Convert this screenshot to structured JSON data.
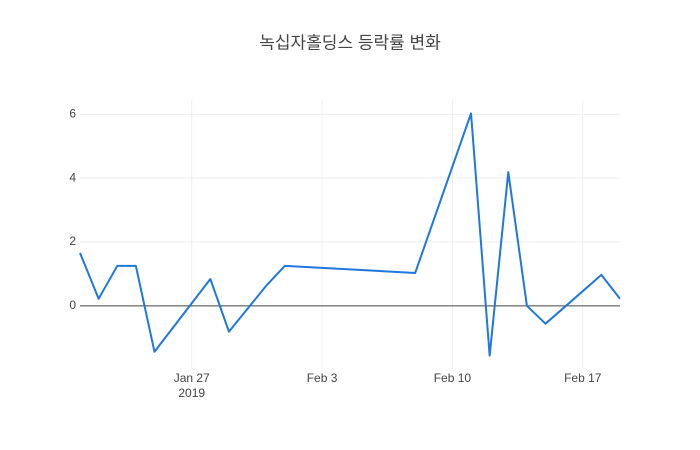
{
  "chart_data": {
    "type": "line",
    "title": "녹십자홀딩스 등락률 변화",
    "x": [
      "2019-01-21",
      "2019-01-22",
      "2019-01-23",
      "2019-01-24",
      "2019-01-25",
      "2019-01-28",
      "2019-01-29",
      "2019-01-31",
      "2019-02-01",
      "2019-02-08",
      "2019-02-11",
      "2019-02-12",
      "2019-02-13",
      "2019-02-14",
      "2019-02-15",
      "2019-02-18",
      "2019-02-19"
    ],
    "values": [
      1.66,
      0.22,
      1.25,
      1.25,
      -1.44,
      0.84,
      -0.81,
      0.63,
      1.25,
      1.03,
      6.03,
      -1.56,
      4.19,
      0,
      -0.56,
      0.97,
      0.22
    ],
    "color": "#1f77e0",
    "xlim": [
      "2019-01-21",
      "2019-02-19"
    ],
    "xticks": [
      {
        "value": "2019-01-27",
        "label": "Jan 27\n2019"
      },
      {
        "value": "2019-02-03",
        "label": "Feb 3"
      },
      {
        "value": "2019-02-10",
        "label": "Feb 10"
      },
      {
        "value": "2019-02-17",
        "label": "Feb 17"
      }
    ],
    "ylim": [
      -1.98,
      6.45
    ],
    "yticks": [
      0,
      2,
      4,
      6
    ],
    "grid": true
  }
}
